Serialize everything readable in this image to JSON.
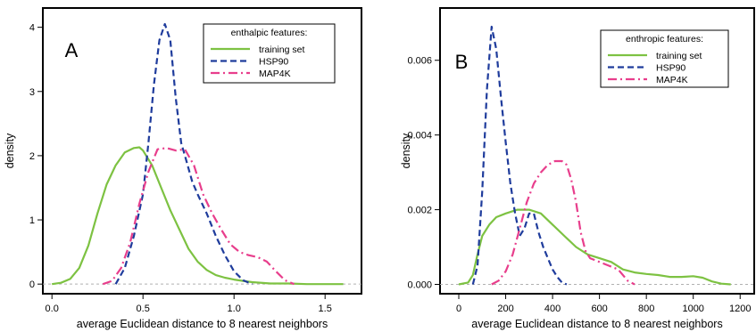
{
  "chart_data": [
    {
      "type": "line",
      "panel_label": "A",
      "xlabel": "average Euclidean distance to 8 nearest neighbors",
      "ylabel": "density",
      "xlim": [
        -0.05,
        1.7
      ],
      "ylim": [
        -0.15,
        4.3
      ],
      "xticks": [
        0.0,
        0.5,
        1.0,
        1.5
      ],
      "xtick_labels": [
        "0.0",
        "0.5",
        "1.0",
        "1.5"
      ],
      "yticks": [
        0,
        1,
        2,
        3,
        4
      ],
      "ytick_labels": [
        "0",
        "1",
        "2",
        "3",
        "4"
      ],
      "grid": false,
      "baseline": 0,
      "legend_title": "enthalpic features:",
      "legend_position": "top-right",
      "series": [
        {
          "name": "training set",
          "color": "#7dc242",
          "dash": "solid",
          "x": [
            0.0,
            0.05,
            0.1,
            0.15,
            0.2,
            0.25,
            0.3,
            0.35,
            0.4,
            0.45,
            0.48,
            0.5,
            0.55,
            0.6,
            0.65,
            0.7,
            0.75,
            0.8,
            0.85,
            0.9,
            0.95,
            1.0,
            1.05,
            1.1,
            1.2,
            1.3,
            1.4,
            1.5,
            1.6
          ],
          "y": [
            0.0,
            0.02,
            0.08,
            0.25,
            0.6,
            1.1,
            1.55,
            1.85,
            2.05,
            2.12,
            2.13,
            2.08,
            1.85,
            1.5,
            1.15,
            0.85,
            0.55,
            0.35,
            0.22,
            0.14,
            0.1,
            0.07,
            0.05,
            0.03,
            0.01,
            0.01,
            0.0,
            0.0,
            0.0
          ]
        },
        {
          "name": "HSP90",
          "color": "#1f3c9c",
          "dash": "dashed",
          "x": [
            0.35,
            0.4,
            0.45,
            0.5,
            0.53,
            0.56,
            0.59,
            0.62,
            0.65,
            0.68,
            0.71,
            0.74,
            0.77,
            0.8,
            0.85,
            0.9,
            0.95,
            1.0,
            1.05,
            1.1
          ],
          "y": [
            0.0,
            0.25,
            0.75,
            1.4,
            2.2,
            3.1,
            3.8,
            4.05,
            3.8,
            2.9,
            2.2,
            1.9,
            1.6,
            1.4,
            1.1,
            0.75,
            0.45,
            0.2,
            0.06,
            0.0
          ]
        },
        {
          "name": "MAP4K",
          "color": "#e83e8c",
          "dash": "dashdot",
          "x": [
            0.28,
            0.33,
            0.38,
            0.43,
            0.48,
            0.53,
            0.58,
            0.63,
            0.68,
            0.73,
            0.78,
            0.83,
            0.88,
            0.93,
            0.98,
            1.03,
            1.08,
            1.13,
            1.18,
            1.23,
            1.28,
            1.33
          ],
          "y": [
            0.0,
            0.05,
            0.25,
            0.65,
            1.25,
            1.75,
            2.1,
            2.12,
            2.08,
            2.1,
            1.85,
            1.4,
            1.1,
            0.85,
            0.62,
            0.5,
            0.45,
            0.42,
            0.35,
            0.2,
            0.06,
            0.0
          ]
        }
      ]
    },
    {
      "type": "line",
      "panel_label": "B",
      "xlabel": "average Euclidean distance to 8 nearest neighbors",
      "ylabel": "density",
      "xlim": [
        -80,
        1260
      ],
      "ylim": [
        -0.00025,
        0.0074
      ],
      "xticks": [
        0,
        200,
        400,
        600,
        800,
        1000,
        1200
      ],
      "xtick_labels": [
        "0",
        "200",
        "400",
        "600",
        "800",
        "1000",
        "1200"
      ],
      "yticks": [
        0.0,
        0.002,
        0.004,
        0.006
      ],
      "ytick_labels": [
        "0.000",
        "0.002",
        "0.004",
        "0.006"
      ],
      "grid": false,
      "baseline": 0,
      "legend_title": "enthropic features:",
      "legend_position": "top-right",
      "series": [
        {
          "name": "training set",
          "color": "#7dc242",
          "dash": "solid",
          "x": [
            0,
            40,
            60,
            80,
            100,
            130,
            160,
            200,
            250,
            300,
            350,
            400,
            450,
            500,
            550,
            600,
            650,
            700,
            750,
            800,
            850,
            900,
            950,
            1000,
            1040,
            1080,
            1120,
            1160
          ],
          "y": [
            0.0,
            5e-05,
            0.00025,
            0.0008,
            0.0013,
            0.0016,
            0.0018,
            0.0019,
            0.002,
            0.002,
            0.0019,
            0.0016,
            0.0013,
            0.001,
            0.0008,
            0.0007,
            0.0006,
            0.0004,
            0.00032,
            0.00028,
            0.00025,
            0.0002,
            0.0002,
            0.00022,
            0.00018,
            8e-05,
            2e-05,
            0.0
          ]
        },
        {
          "name": "HSP90",
          "color": "#1f3c9c",
          "dash": "dashed",
          "x": [
            60,
            80,
            100,
            120,
            140,
            160,
            180,
            200,
            220,
            240,
            260,
            280,
            300,
            320,
            340,
            360,
            380,
            400,
            420,
            440,
            460
          ],
          "y": [
            0.0,
            0.0005,
            0.0025,
            0.0052,
            0.0069,
            0.0063,
            0.005,
            0.0038,
            0.0027,
            0.0019,
            0.0013,
            0.0015,
            0.0019,
            0.0019,
            0.0014,
            0.001,
            0.0007,
            0.0004,
            0.0002,
            5e-05,
            0.0
          ]
        },
        {
          "name": "MAP4K",
          "color": "#e83e8c",
          "dash": "dashdot",
          "x": [
            140,
            170,
            200,
            230,
            260,
            290,
            320,
            350,
            380,
            410,
            440,
            460,
            480,
            500,
            520,
            540,
            560,
            600,
            640,
            680,
            720,
            750
          ],
          "y": [
            0.0,
            0.0001,
            0.00035,
            0.0008,
            0.0015,
            0.0022,
            0.0027,
            0.003,
            0.0032,
            0.0033,
            0.0033,
            0.0032,
            0.0028,
            0.0022,
            0.0014,
            0.0009,
            0.0007,
            0.0006,
            0.0005,
            0.0004,
            0.0001,
            0.0
          ]
        }
      ]
    }
  ]
}
